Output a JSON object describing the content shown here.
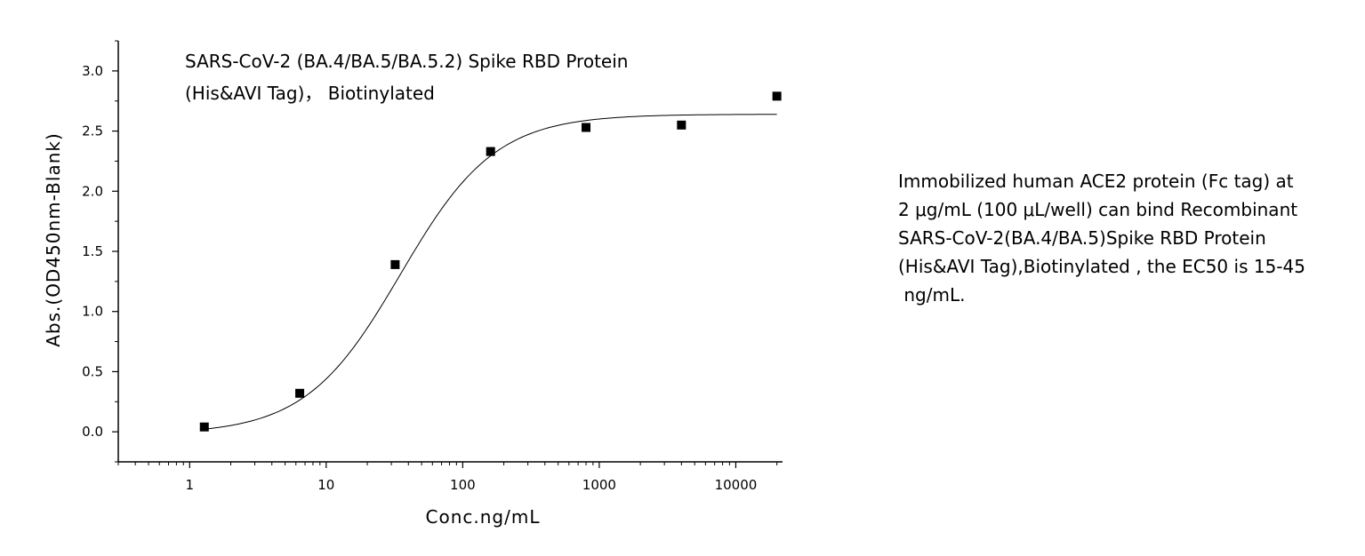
{
  "chart_data": {
    "type": "scatter",
    "title_lines": [
      "SARS-CoV-2 (BA.4/BA.5/BA.5.2) Spike RBD Protein",
      "(His&AVI Tag)， Biotinylated"
    ],
    "xlabel": "Conc.ng/mL",
    "ylabel": "Abs.(OD450nm-Blank)",
    "x_scale": "log",
    "xlim": [
      0.3,
      22000
    ],
    "ylim": [
      -0.25,
      3.25
    ],
    "x_ticks": [
      1,
      10,
      100,
      1000,
      10000
    ],
    "x_tick_labels": [
      "1",
      "10",
      "100",
      "1000",
      "10000"
    ],
    "y_ticks": [
      0.0,
      0.5,
      1.0,
      1.5,
      2.0,
      2.5,
      3.0
    ],
    "y_tick_labels": [
      "0.0",
      "0.5",
      "1.0",
      "1.5",
      "2.0",
      "2.5",
      "3.0"
    ],
    "grid": false,
    "points": {
      "x": [
        1.28,
        6.4,
        32,
        160,
        800,
        4000,
        20000
      ],
      "y": [
        0.04,
        0.32,
        1.39,
        2.33,
        2.53,
        2.55,
        2.79
      ]
    },
    "fit_curve": {
      "model": "4PL",
      "bottom": -0.02,
      "top": 2.64,
      "ec50": 35,
      "hill": 1.25,
      "x_range": [
        1.28,
        20000
      ]
    }
  },
  "description": {
    "lines": [
      "Immobilized human ACE2 protein (Fc tag) at",
      "2 μg/mL (100 μL/well) can bind Recombinant",
      "SARS-CoV-2(BA.4/BA.5)Spike RBD Protein",
      "(His&AVI Tag),Biotinylated , the EC50 is 15-45",
      " ng/mL."
    ]
  }
}
